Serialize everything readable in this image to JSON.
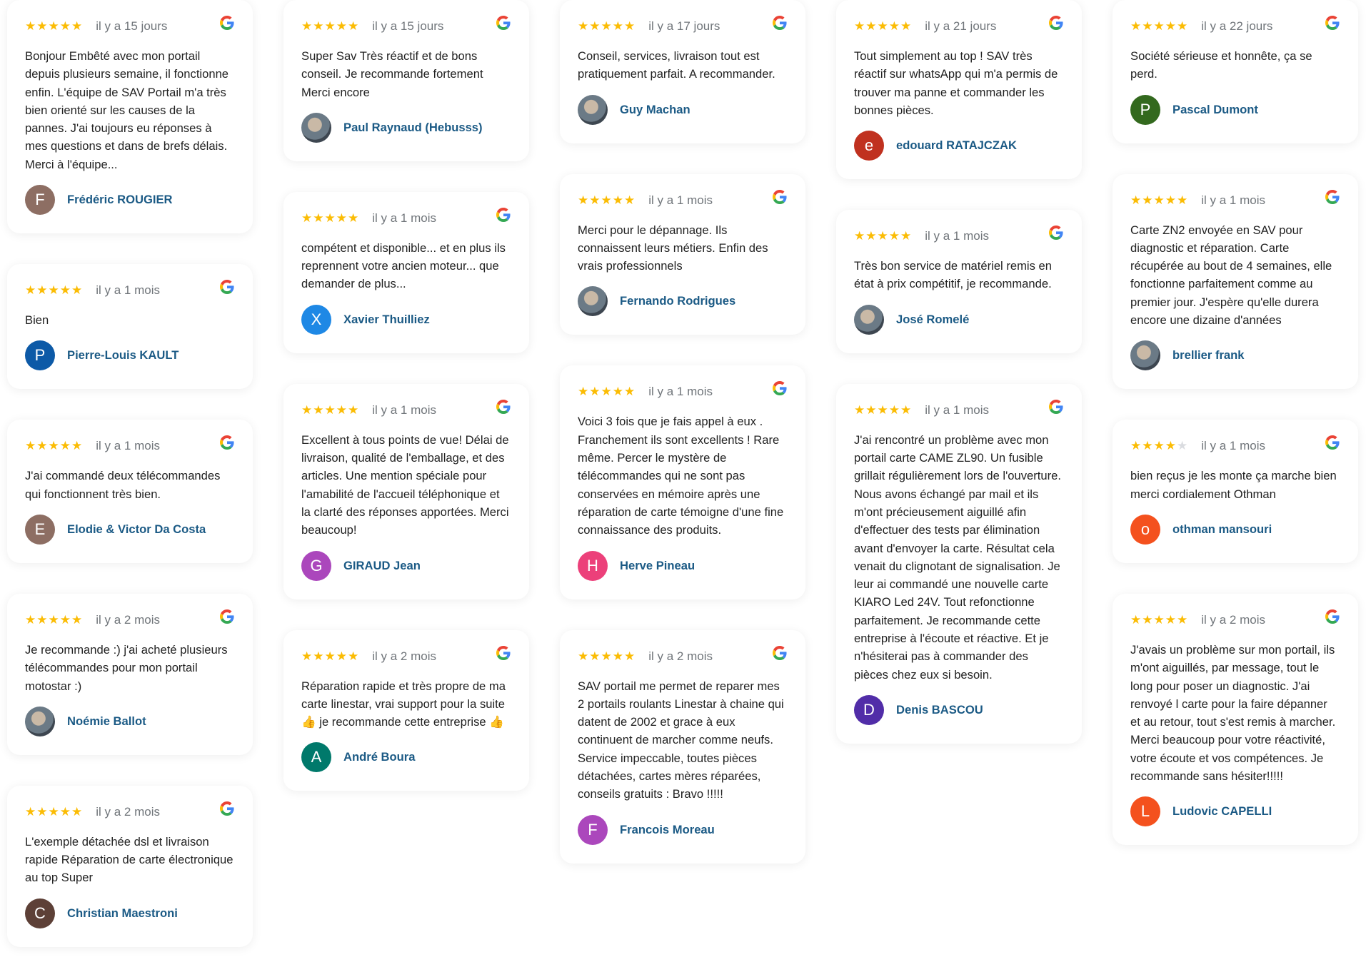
{
  "colors": {
    "star": "#fbbc04",
    "name": "#1b5a85",
    "date": "#70757a"
  },
  "columns": [
    [
      {
        "rating": 5,
        "date": "il y a 15 jours",
        "text": "Bonjour Embêté avec mon portail depuis plusieurs semaine, il fonctionne enfin. L'équipe de SAV Portail m'a très bien orienté sur les causes de la pannes. J'ai toujours eu réponses à mes questions et dans de brefs délais. Merci à l'équipe...",
        "author": "Frédéric ROUGIER",
        "initial": "F",
        "avatar_color": "#8d6e63"
      },
      {
        "rating": 5,
        "date": "il y a 1 mois",
        "text": "Bien",
        "author": "Pierre-Louis KAULT",
        "initial": "P",
        "avatar_color": "#0d5aa7"
      },
      {
        "rating": 5,
        "date": "il y a 1 mois",
        "text": "J'ai commandé deux télécommandes qui fonctionnent très bien.",
        "author": "Elodie & Victor Da Costa",
        "initial": "E",
        "avatar_color": "#8d6e63"
      },
      {
        "rating": 5,
        "date": "il y a 2 mois",
        "text": "Je recommande :) j'ai acheté plusieurs télécommandes pour mon portail motostar :)",
        "author": "Noémie Ballot",
        "initial": "",
        "avatar_color": "photo"
      },
      {
        "rating": 5,
        "date": "il y a 2 mois",
        "text": "L'exemple détachée dsl et livraison rapide Réparation de carte électronique au top Super",
        "author": "Christian Maestroni",
        "initial": "C",
        "avatar_color": "#5d4037"
      }
    ],
    [
      {
        "rating": 5,
        "date": "il y a 15 jours",
        "text": "Super Sav Très réactif et de bons conseil. Je recommande fortement Merci encore",
        "author": "Paul Raynaud (Hebusss)",
        "initial": "",
        "avatar_color": "photo"
      },
      {
        "rating": 5,
        "date": "il y a 1 mois",
        "text": "compétent et disponible... et en plus ils reprennent votre ancien moteur... que demander de plus...",
        "author": "Xavier Thuilliez",
        "initial": "X",
        "avatar_color": "#1e88e5"
      },
      {
        "rating": 5,
        "date": "il y a 1 mois",
        "text": "Excellent à tous points de vue! Délai de livraison, qualité de l'emballage, et des articles. Une mention spéciale pour l'amabilité de l'accueil téléphonique et la clarté des réponses apportées. Merci beaucoup!",
        "author": "GIRAUD Jean",
        "initial": "G",
        "avatar_color": "#ab47bc"
      },
      {
        "rating": 5,
        "date": "il y a 2 mois",
        "text": "Réparation rapide et très propre de ma carte linestar, vrai support pour la suite 👍 je recommande cette entreprise 👍",
        "author": "André Boura",
        "initial": "A",
        "avatar_color": "#00796b"
      }
    ],
    [
      {
        "rating": 5,
        "date": "il y a 17 jours",
        "text": "Conseil, services, livraison tout est pratiquement parfait. A recommander.",
        "author": "Guy Machan",
        "initial": "",
        "avatar_color": "photo"
      },
      {
        "rating": 5,
        "date": "il y a 1 mois",
        "text": "Merci pour le dépannage. Ils connaissent leurs métiers. Enfin des vrais professionnels",
        "author": "Fernando Rodrigues",
        "initial": "",
        "avatar_color": "photo"
      },
      {
        "rating": 5,
        "date": "il y a 1 mois",
        "text": "Voici 3 fois que je fais appel à eux . Franchement ils sont excellents ! Rare même. Percer le mystère de télécommandes qui ne sont pas conservées en mémoire après une réparation de carte témoigne d'une fine connaissance des produits.",
        "author": "Herve Pineau",
        "initial": "H",
        "avatar_color": "#ec407a"
      },
      {
        "rating": 5,
        "date": "il y a 2 mois",
        "text": "SAV portail me permet de reparer mes 2 portails roulants Linestar à chaine qui datent de 2002 et grace à eux continuent de marcher comme neufs. Service impeccable, toutes pièces détachées, cartes mères réparées, conseils gratuits : Bravo !!!!!",
        "author": "Francois Moreau",
        "initial": "F",
        "avatar_color": "#ab47bc"
      }
    ],
    [
      {
        "rating": 5,
        "date": "il y a 21 jours",
        "text": "Tout simplement au top ! SAV très réactif sur whatsApp qui m'a permis de trouver ma panne et commander les bonnes pièces.",
        "author": "edouard RATAJCZAK",
        "initial": "e",
        "avatar_color": "#c0311f"
      },
      {
        "rating": 5,
        "date": "il y a 1 mois",
        "text": "Très bon service de matériel remis en état à prix compétitif, je recommande.",
        "author": "José Romelé",
        "initial": "",
        "avatar_color": "photo"
      },
      {
        "rating": 5,
        "date": "il y a 1 mois",
        "text": "J'ai rencontré un problème avec mon portail carte CAME ZL90. Un fusible grillait régulièrement lors de l'ouverture. Nous avons échangé par mail et ils m'ont précieusement aiguillé afin d'effectuer des tests par élimination avant d'envoyer la carte. Résultat cela venait du clignotant de signalisation. Je leur ai commandé une nouvelle carte KIARO Led 24V. Tout refonctionne parfaitement. Je recommande cette entreprise à l'écoute et réactive. Et je n'hésiterai pas à commander des pièces chez eux si besoin.",
        "author": "Denis BASCOU",
        "initial": "D",
        "avatar_color": "#512da8"
      }
    ],
    [
      {
        "rating": 5,
        "date": "il y a 22 jours",
        "text": "Société sérieuse et honnête, ça se perd.",
        "author": "Pascal Dumont",
        "initial": "P",
        "avatar_color": "#33691e"
      },
      {
        "rating": 5,
        "date": "il y a 1 mois",
        "text": "Carte ZN2 envoyée en SAV pour diagnostic et réparation. Carte récupérée au bout de 4 semaines, elle fonctionne parfaitement comme au premier jour. J'espère qu'elle durera encore une dizaine d'années",
        "author": "brellier frank",
        "initial": "",
        "avatar_color": "photo"
      },
      {
        "rating": 4,
        "date": "il y a 1 mois",
        "text": "bien reçus je les monte ça marche bien merci cordialement Othman",
        "author": "othman mansouri",
        "initial": "o",
        "avatar_color": "#f4511e"
      },
      {
        "rating": 5,
        "date": "il y a 2 mois",
        "text": "J'avais un problème sur mon portail, ils m'ont aiguillés, par message, tout le long pour poser un diagnostic. J'ai renvoyé l carte pour la faire dépanner et au retour, tout s'est remis à marcher. Merci beaucoup pour votre réactivité, votre écoute et vos compétences. Je recommande sans hésiter!!!!!",
        "author": "Ludovic CAPELLI",
        "initial": "L",
        "avatar_color": "#f4511e"
      }
    ]
  ]
}
